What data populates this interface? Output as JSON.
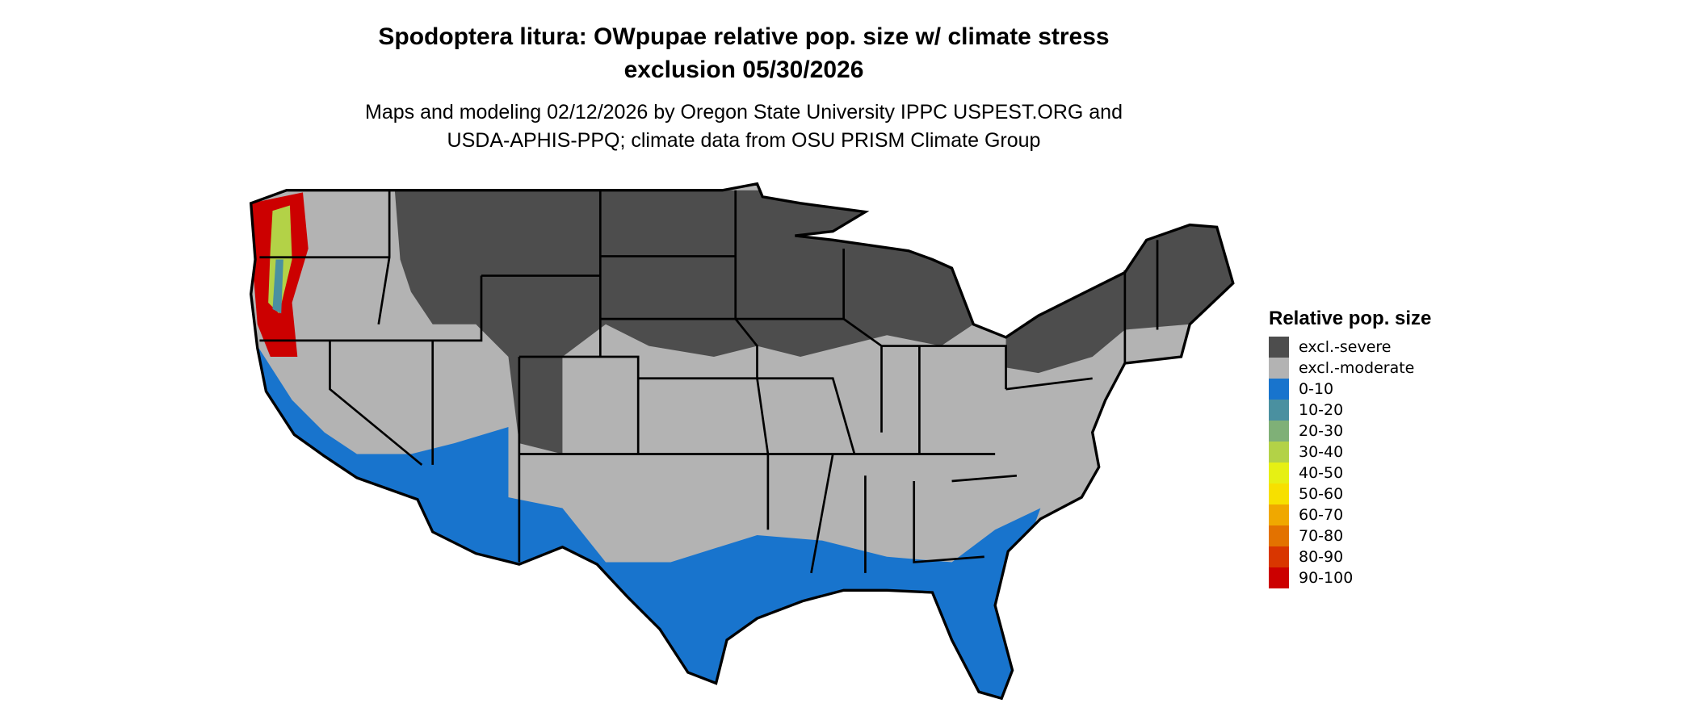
{
  "title": {
    "line1": "Spodoptera litura: OWpupae relative pop. size w/ climate stress",
    "line2": "exclusion 05/30/2026"
  },
  "subtitle": {
    "line1": "Maps and modeling 02/12/2026 by Oregon State University IPPC USPEST.ORG and",
    "line2": "USDA-APHIS-PPQ; climate data from OSU PRISM Climate Group"
  },
  "legend": {
    "title": "Relative pop. size",
    "items": [
      {
        "label": "excl.-severe",
        "color": "#4d4d4d"
      },
      {
        "label": "excl.-moderate",
        "color": "#b3b3b3"
      },
      {
        "label": "0-10",
        "color": "#1874cd"
      },
      {
        "label": "10-20",
        "color": "#4a90a0"
      },
      {
        "label": "20-30",
        "color": "#7fb077"
      },
      {
        "label": "30-40",
        "color": "#b3d247"
      },
      {
        "label": "40-50",
        "color": "#e6f014"
      },
      {
        "label": "50-60",
        "color": "#f7e000"
      },
      {
        "label": "60-70",
        "color": "#f0a800"
      },
      {
        "label": "70-80",
        "color": "#e37200"
      },
      {
        "label": "80-90",
        "color": "#d93600"
      },
      {
        "label": "90-100",
        "color": "#cc0000"
      }
    ]
  }
}
